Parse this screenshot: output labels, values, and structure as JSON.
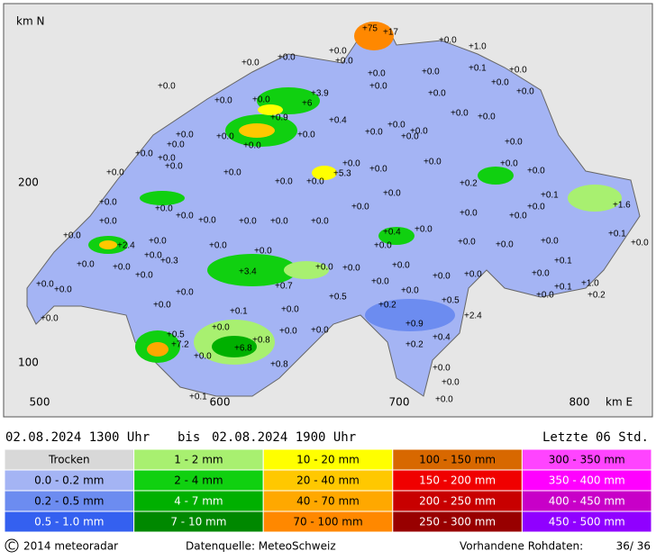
{
  "map": {
    "north_label": "km N",
    "east_label": "km E",
    "x_ticks": [
      "500",
      "600",
      "700",
      "800"
    ],
    "y_ticks": [
      "200",
      "100"
    ],
    "stations": [
      "+75",
      "+17",
      "+0.0",
      "+0.0",
      "+0.0",
      "+0.0",
      "+0.0",
      "+1.0",
      "+0.0",
      "+0.0",
      "+0.1",
      "+0.0",
      "+0.0",
      "+0.0",
      "+0.0",
      "+0.0",
      "+0.0",
      "+0.0",
      "+0.0",
      "+3.9",
      "+6",
      "+0.9",
      "+0.4",
      "+0.0",
      "+0.0",
      "+0.0",
      "+0.0",
      "+0.0",
      "+0.0",
      "+0.0",
      "+0.0",
      "+0.0",
      "+0.0",
      "+0.0",
      "+0.0",
      "+0.0",
      "+0.0",
      "+0.0",
      "+0.0",
      "+0.0",
      "+0.0",
      "+0.0",
      "+5.3",
      "+0.0",
      "+0.0",
      "+0.0",
      "+0.2",
      "+0.0",
      "+0.0",
      "+0.1",
      "+0.0",
      "+1.6",
      "+0.0",
      "+0.0",
      "+0.0",
      "+0.0",
      "+0.0",
      "+0.0",
      "+0.0",
      "+0.0",
      "+0.0",
      "+0.0",
      "+0.0",
      "+0.4",
      "+0.0",
      "+0.0",
      "+0.0",
      "+2.4",
      "+0.0",
      "+0.0",
      "+0.0",
      "+0.0",
      "+0.0",
      "+0.0",
      "+0.0",
      "+0.1",
      "+0.0",
      "+0.0",
      "+0.0",
      "+0.0",
      "+0.3",
      "+3.4",
      "+0.0",
      "+0.0",
      "+0.0",
      "+0.0",
      "+0.0",
      "+0.0",
      "+0.1",
      "+0.0",
      "+0.0",
      "+0.0",
      "+0.0",
      "+0.7",
      "+0.5",
      "+0.0",
      "+0.0",
      "+0.5",
      "+0.0",
      "+0.1",
      "+1.0",
      "+0.2",
      "+0.0",
      "+0.1",
      "+0.0",
      "+0.2",
      "+2.4",
      "+0.0",
      "+0.0",
      "+0.9",
      "+0.5",
      "+7.2",
      "+0.8",
      "+0.0",
      "+0.0",
      "+0.4",
      "+0.2",
      "+0.0",
      "+6.8",
      "+0.8",
      "+0.0",
      "+0.0",
      "+0.1",
      "+0.0"
    ]
  },
  "period": {
    "from": "02.08.2024  1300 Uhr",
    "bis": "bis",
    "to": "02.08.2024  1900 Uhr",
    "last": "Letzte 06 Std."
  },
  "legend": [
    [
      {
        "label": "Trocken",
        "color": "#d8d8d8"
      },
      {
        "label": "0.0 - 0.2 mm",
        "color": "#a4b4f4"
      },
      {
        "label": "0.2 - 0.5 mm",
        "color": "#6c8cf0"
      },
      {
        "label": "0.5 - 1.0 mm",
        "color": "#3460f0"
      }
    ],
    [
      {
        "label": "1 - 2 mm",
        "color": "#a8f070"
      },
      {
        "label": "2 - 4 mm",
        "color": "#10d010"
      },
      {
        "label": "4 - 7 mm",
        "color": "#00b000"
      },
      {
        "label": "7 - 10 mm",
        "color": "#008800"
      }
    ],
    [
      {
        "label": "10 - 20 mm",
        "color": "#ffff00"
      },
      {
        "label": "20 - 40 mm",
        "color": "#ffc800"
      },
      {
        "label": "40 - 70 mm",
        "color": "#ffa800"
      },
      {
        "label": "70 - 100 mm",
        "color": "#ff8800"
      }
    ],
    [
      {
        "label": "100 - 150 mm",
        "color": "#d86800"
      },
      {
        "label": "150 - 200 mm",
        "color": "#f00000"
      },
      {
        "label": "200 - 250 mm",
        "color": "#c80000"
      },
      {
        "label": "250 - 300 mm",
        "color": "#980000"
      }
    ],
    [
      {
        "label": "300 - 350 mm",
        "color": "#ff44ff"
      },
      {
        "label": "350 - 400 mm",
        "color": "#ff00ff"
      },
      {
        "label": "400 - 450 mm",
        "color": "#c800c8"
      },
      {
        "label": "450 - 500 mm",
        "color": "#9000ff"
      }
    ]
  ],
  "footer": {
    "copyright": "2014  meteoradar",
    "source": "Datenquelle: MeteoSchweiz",
    "raw_label": "Vorhandene Rohdaten:",
    "raw_value": "36/ 36"
  }
}
